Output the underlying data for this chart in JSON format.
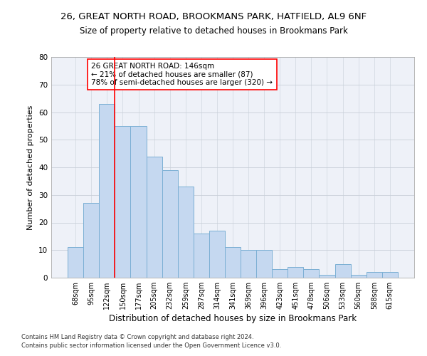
{
  "title1": "26, GREAT NORTH ROAD, BROOKMANS PARK, HATFIELD, AL9 6NF",
  "title2": "Size of property relative to detached houses in Brookmans Park",
  "xlabel": "Distribution of detached houses by size in Brookmans Park",
  "ylabel": "Number of detached properties",
  "categories": [
    "68sqm",
    "95sqm",
    "122sqm",
    "150sqm",
    "177sqm",
    "205sqm",
    "232sqm",
    "259sqm",
    "287sqm",
    "314sqm",
    "341sqm",
    "369sqm",
    "396sqm",
    "423sqm",
    "451sqm",
    "478sqm",
    "506sqm",
    "533sqm",
    "560sqm",
    "588sqm",
    "615sqm"
  ],
  "values": [
    11,
    27,
    63,
    55,
    55,
    44,
    39,
    33,
    16,
    17,
    11,
    10,
    10,
    3,
    4,
    3,
    1,
    5,
    1,
    2,
    2
  ],
  "bar_color": "#c5d8f0",
  "bar_edge_color": "#7bafd4",
  "annotation_text": "26 GREAT NORTH ROAD: 146sqm\n← 21% of detached houses are smaller (87)\n78% of semi-detached houses are larger (320) →",
  "annotation_box_color": "white",
  "annotation_box_edge": "red",
  "ylim": [
    0,
    80
  ],
  "yticks": [
    0,
    10,
    20,
    30,
    40,
    50,
    60,
    70,
    80
  ],
  "grid_color": "#c8cfd8",
  "background_color": "#eef1f8",
  "footer1": "Contains HM Land Registry data © Crown copyright and database right 2024.",
  "footer2": "Contains public sector information licensed under the Open Government Licence v3.0.",
  "title_fontsize": 9.5,
  "subtitle_fontsize": 8.5,
  "tick_fontsize": 7,
  "ylabel_fontsize": 8,
  "xlabel_fontsize": 8.5,
  "annotation_fontsize": 7.5,
  "footer_fontsize": 6
}
